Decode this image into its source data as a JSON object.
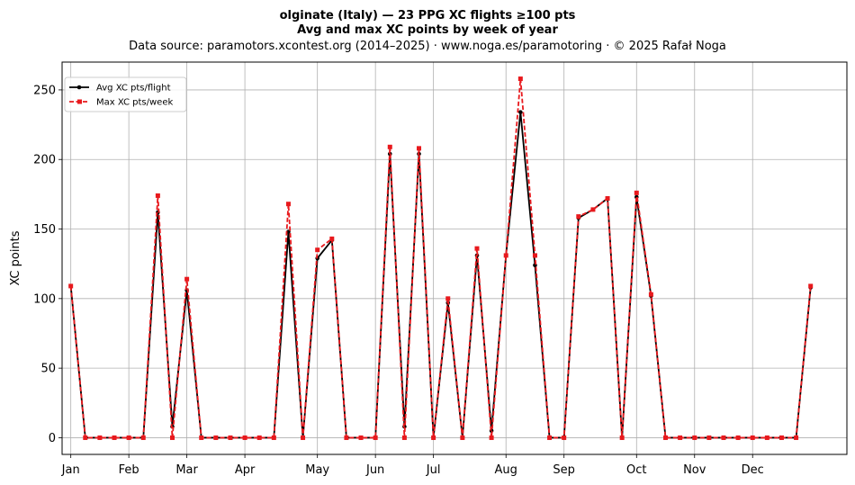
{
  "chart_data": {
    "type": "line",
    "title": "olginate (Italy)  —  23 PPG XC flights ≥100 pts",
    "subtitle": "Avg and max XC points by week of year",
    "source_note": "Data source: paramotors.xcontest.org (2014–2025)  ·  www.noga.es/paramotoring  ·  © 2025 Rafał Noga",
    "xlabel": "",
    "ylabel": "XC points",
    "xlim": [
      -0.6,
      53.5
    ],
    "ylim": [
      -12,
      270
    ],
    "grid": true,
    "legend_position": "top-left",
    "x_ticks": [
      {
        "x": 0,
        "label": "Jan"
      },
      {
        "x": 4,
        "label": "Feb"
      },
      {
        "x": 8,
        "label": "Mar"
      },
      {
        "x": 12,
        "label": "Apr"
      },
      {
        "x": 17,
        "label": "May"
      },
      {
        "x": 21,
        "label": "Jun"
      },
      {
        "x": 25,
        "label": "Jul"
      },
      {
        "x": 30,
        "label": "Aug"
      },
      {
        "x": 34,
        "label": "Sep"
      },
      {
        "x": 39,
        "label": "Oct"
      },
      {
        "x": 43,
        "label": "Nov"
      },
      {
        "x": 47,
        "label": "Dec"
      }
    ],
    "y_ticks": [
      0,
      50,
      100,
      150,
      200,
      250
    ],
    "x": [
      0,
      1,
      2,
      3,
      4,
      5,
      6,
      7,
      8,
      9,
      10,
      11,
      12,
      13,
      14,
      15,
      16,
      17,
      18,
      19,
      20,
      21,
      22,
      23,
      24,
      25,
      26,
      27,
      28,
      29,
      30,
      31,
      32,
      33,
      34,
      35,
      36,
      37,
      38,
      39,
      40,
      41,
      42,
      43,
      44,
      45,
      46,
      47,
      48,
      49,
      50,
      51
    ],
    "series": [
      {
        "name": "Avg XC pts/flight",
        "color": "#000000",
        "style": "solid",
        "marker": "circle",
        "values": [
          109,
          0,
          0,
          0,
          0,
          0,
          162,
          8,
          106,
          0,
          0,
          0,
          0,
          0,
          0,
          148,
          0,
          129,
          142,
          0,
          0,
          0,
          204,
          8,
          204,
          0,
          97,
          0,
          131,
          5,
          131,
          234,
          124,
          0,
          0,
          158,
          164,
          172,
          0,
          173,
          102,
          0,
          0,
          0,
          0,
          0,
          0,
          0,
          0,
          0,
          0,
          108
        ]
      },
      {
        "name": "Max XC pts/week",
        "color": "#e8191d",
        "style": "dashed",
        "marker": "square",
        "values": [
          109,
          0,
          0,
          0,
          0,
          0,
          174,
          0,
          114,
          0,
          0,
          0,
          0,
          0,
          0,
          168,
          0,
          135,
          143,
          0,
          0,
          0,
          209,
          0,
          208,
          0,
          100,
          0,
          136,
          0,
          131,
          258,
          131,
          0,
          0,
          159,
          164,
          172,
          0,
          176,
          103,
          0,
          0,
          0,
          0,
          0,
          0,
          0,
          0,
          0,
          0,
          109
        ]
      }
    ]
  }
}
